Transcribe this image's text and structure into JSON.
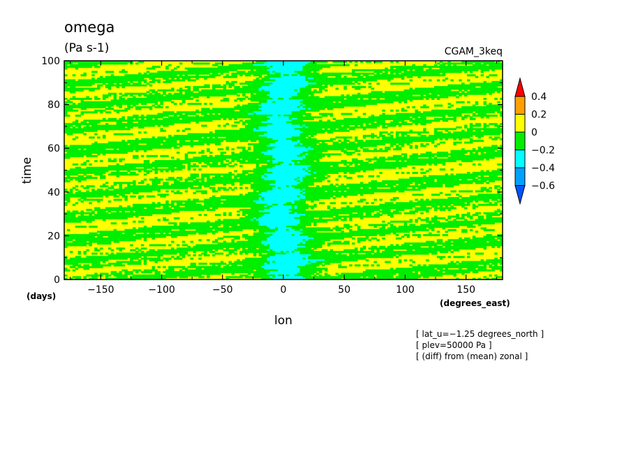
{
  "chart_data": {
    "type": "heatmap",
    "title": "omega",
    "units": "(Pa s-1)",
    "dataset": "CGAM_3keq",
    "xlabel": "lon",
    "ylabel": "time",
    "xunits": "(degrees_east)",
    "yunits": "(days)",
    "xlim": [
      -180,
      180
    ],
    "ylim": [
      0,
      100
    ],
    "xticks": [
      -150,
      -100,
      -50,
      0,
      50,
      100,
      150
    ],
    "yticks": [
      0,
      20,
      40,
      60,
      80,
      100
    ],
    "xtick_labels": [
      "−150",
      "−100",
      "−50",
      "0",
      "50",
      "100",
      "150"
    ],
    "ytick_labels": [
      "0",
      "20",
      "40",
      "60",
      "80",
      "100"
    ],
    "colorbar": {
      "levels": [
        -0.6,
        -0.4,
        -0.2,
        0,
        0.2,
        0.4
      ],
      "labels": [
        "−0.6",
        "−0.4",
        "−0.2",
        "0",
        "0.2",
        "0.4"
      ],
      "colors": [
        "#0055ff",
        "#00a0ff",
        "#00ffff",
        "#00ee00",
        "#ffff00",
        "#ffa000",
        "#ff0000"
      ],
      "extend": "both"
    },
    "annotations": [
      "[ lat_u=−1.25 degrees_north ]",
      "[ plev=50000 Pa ]",
      "[ (diff) from (mean) zonal ]"
    ],
    "field": {
      "description_shown": "Longitude-time Hovmoller field: mostly yellow (0 to 0.2) and green (-0.2 to 0) eastward-tilted streaks; a cyan (-0.4 to -0.2) ascending band centered near lon 0 throughout 0-100 days; rare small orange (0.2 to 0.4) spots."
    }
  }
}
